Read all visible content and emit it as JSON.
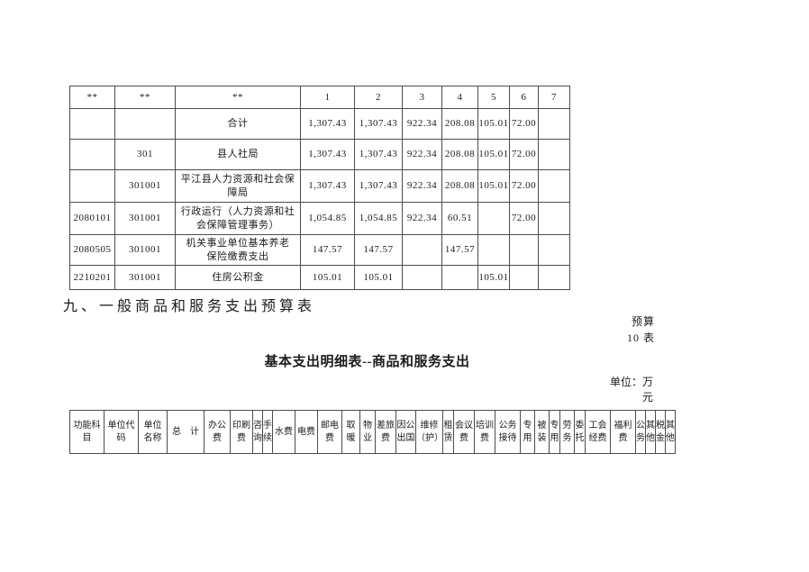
{
  "page": {
    "section_heading": "九、一般商品和服务支出预算表",
    "table_number_note": "预算\n10 表",
    "detail_table_title": "基本支出明细表--商品和服务支出",
    "unit_note": "单位：万\n元"
  },
  "summary_table": {
    "headers": [
      "**",
      "**",
      "**",
      "1",
      "2",
      "3",
      "4",
      "5",
      "6",
      "7"
    ],
    "rows": [
      [
        "",
        "",
        "合计",
        "1,307.43",
        "1,307.43",
        "922.34",
        "208.08",
        "105.01",
        "72.00",
        ""
      ],
      [
        "",
        "301",
        "县人社局",
        "1,307.43",
        "1,307.43",
        "922.34",
        "208.08",
        "105.01",
        "72.00",
        ""
      ],
      [
        "",
        "301001",
        "平江县人力资源和社会保\n障局",
        "1,307.43",
        "1,307.43",
        "922.34",
        "208.08",
        "105.01",
        "72.00",
        ""
      ],
      [
        "2080101",
        "301001",
        "行政运行（人力资源和社\n会保障管理事务）",
        "1,054.85",
        "1,054.85",
        "922.34",
        "60.51",
        "",
        "72.00",
        ""
      ],
      [
        "2080505",
        "301001",
        "机关事业单位基本养老\n保险缴费支出",
        "147.57",
        "147.57",
        "",
        "147.57",
        "",
        "",
        ""
      ],
      [
        "2210201",
        "301001",
        "住房公积金",
        "105.01",
        "105.01",
        "",
        "",
        "105.01",
        "",
        ""
      ]
    ]
  },
  "detail_table": {
    "headers": [
      "功能科\n目",
      "单位代\n码",
      "单位\n名称",
      "总　计",
      "办公\n费",
      "印刷\n费",
      "咨\n询",
      "手\n续",
      "水费",
      "电费",
      "邮电\n费",
      "取\n暖",
      "物\n业",
      "差旅\n费",
      "因公\n出国",
      "维修\n（护）",
      "租\n赁",
      "会议\n费",
      "培训\n费",
      "公务\n接待",
      "专\n用",
      "被\n装",
      "专\n用",
      "劳\n务",
      "委\n托",
      "工会\n经费",
      "福利\n费",
      "公\n务",
      "其\n他",
      "税\n金",
      "其\n他"
    ]
  }
}
